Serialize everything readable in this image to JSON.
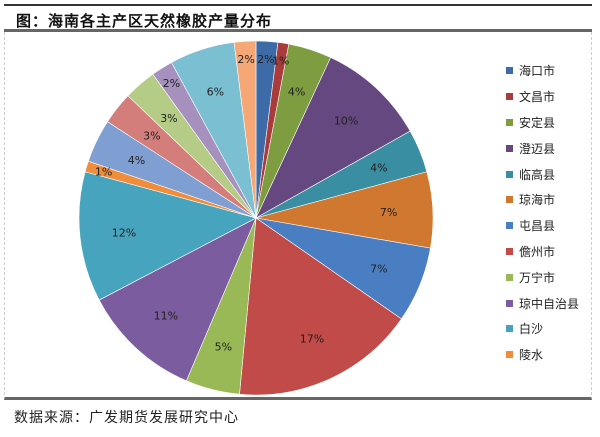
{
  "title": "图：海南各主产区天然橡胶产量分布",
  "source": "数据来源：广发期货发展研究中心",
  "chart_data": {
    "type": "pie",
    "title": "海南各主产区天然橡胶产量分布",
    "start_angle_deg": 0,
    "direction": "clockwise",
    "slices": [
      {
        "label": "海口市",
        "value": 2,
        "color": "#3D6BA8"
      },
      {
        "label": "文昌市",
        "value": 1,
        "color": "#A93B3A"
      },
      {
        "label": "安定县",
        "value": 4,
        "color": "#7E9D41"
      },
      {
        "label": "澄迈县",
        "value": 10,
        "color": "#65487F"
      },
      {
        "label": "临高县",
        "value": 4,
        "color": "#3A8EA1"
      },
      {
        "label": "琼海市",
        "value": 7,
        "color": "#D0782F"
      },
      {
        "label": "屯昌县",
        "value": 7,
        "color": "#4A7EC2"
      },
      {
        "label": "儋州市",
        "value": 17,
        "color": "#C04B48"
      },
      {
        "label": "万宁市",
        "value": 5,
        "color": "#98B955"
      },
      {
        "label": "琼中自治县",
        "value": 11,
        "color": "#7B5C9E"
      },
      {
        "label": "白沙",
        "value": 12,
        "color": "#46A4BE"
      },
      {
        "label": "陵水",
        "value": 1,
        "color": "#EF8D3A"
      },
      {
        "label": "",
        "value": 4,
        "color": "#7F9FD2"
      },
      {
        "label": "",
        "value": 3,
        "color": "#D47E7C"
      },
      {
        "label": "",
        "value": 3,
        "color": "#B5CC86"
      },
      {
        "label": "",
        "value": 2,
        "color": "#A690BE"
      },
      {
        "label": "",
        "value": 6,
        "color": "#7BBFD2"
      },
      {
        "label": "",
        "value": 2,
        "color": "#F5A776"
      }
    ],
    "data_labels": [
      "2%",
      "1%",
      "4%",
      "10%",
      "4%",
      "7%",
      "7%",
      "17%",
      "5%",
      "11%",
      "12%",
      "1%",
      "4%",
      "3%",
      "3%",
      "2%",
      "6%",
      "2%"
    ],
    "legend_position": "right"
  },
  "legend": [
    {
      "label": "海口市",
      "color": "#3D6BA8"
    },
    {
      "label": "文昌市",
      "color": "#A93B3A"
    },
    {
      "label": "安定县",
      "color": "#7E9D41"
    },
    {
      "label": "澄迈县",
      "color": "#65487F"
    },
    {
      "label": "临高县",
      "color": "#3A8EA1"
    },
    {
      "label": "琼海市",
      "color": "#D0782F"
    },
    {
      "label": "屯昌县",
      "color": "#4A7EC2"
    },
    {
      "label": "儋州市",
      "color": "#C04B48"
    },
    {
      "label": "万宁市",
      "color": "#98B955"
    },
    {
      "label": "琼中自治县",
      "color": "#7B5C9E"
    },
    {
      "label": "白沙",
      "color": "#46A4BE"
    },
    {
      "label": "陵水",
      "color": "#EF8D3A"
    }
  ]
}
